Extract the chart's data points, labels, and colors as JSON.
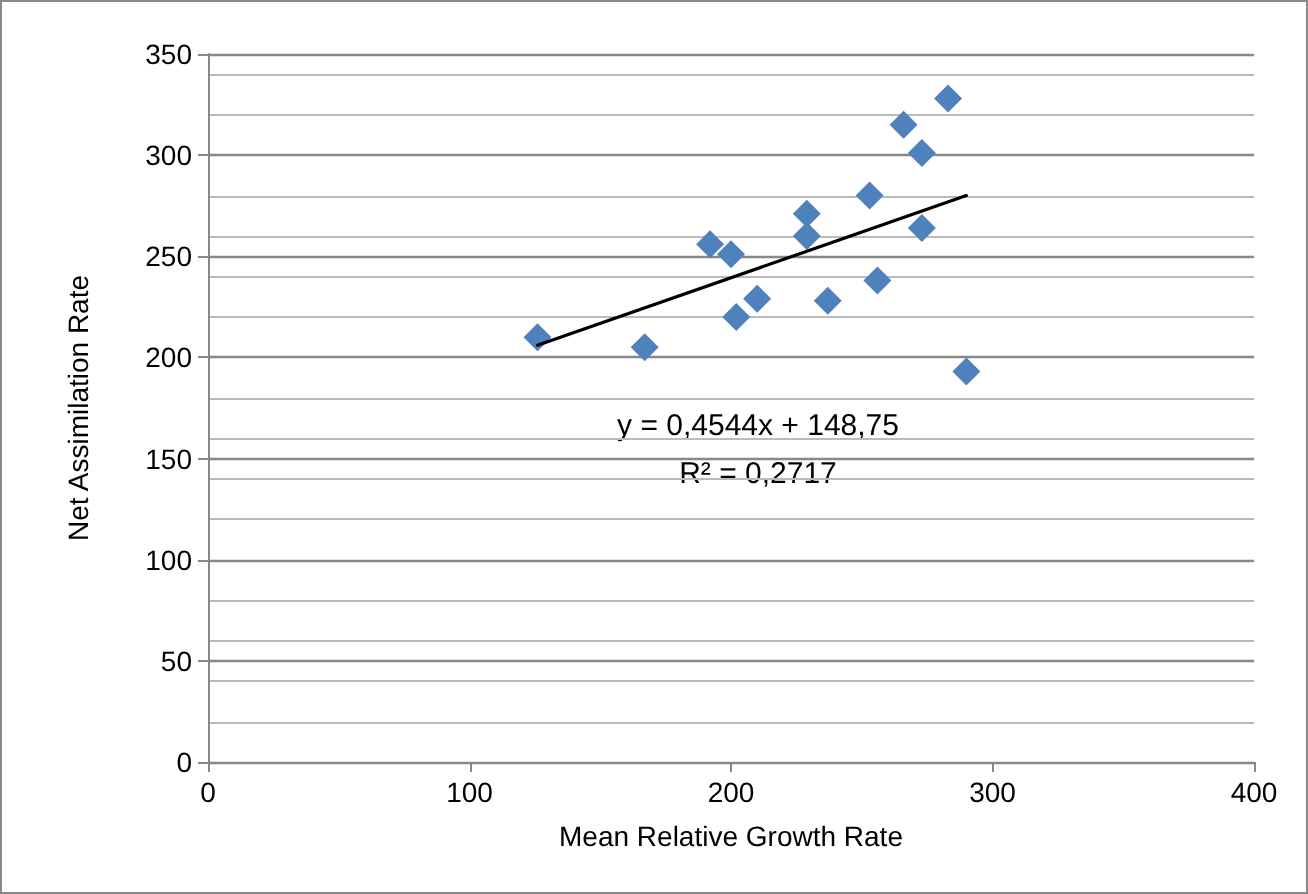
{
  "chart_data": {
    "type": "scatter",
    "xlabel": "Mean Relative Growth Rate",
    "ylabel": "Net Assimilation Rate",
    "xlim": [
      0,
      400
    ],
    "xticks": [
      0,
      100,
      200,
      300,
      400
    ],
    "ylim": [
      0,
      350
    ],
    "yticks": [
      0,
      50,
      100,
      150,
      200,
      250,
      300,
      350
    ],
    "grid": "y",
    "marker": "diamond",
    "series": [
      {
        "color": "#4f81bd",
        "x": [
          126,
          167,
          192,
          200,
          202,
          210,
          229,
          229,
          237,
          253,
          256,
          266,
          273,
          273,
          283,
          290
        ],
        "values": [
          210,
          205,
          256,
          251,
          220,
          229,
          271,
          260,
          228,
          280,
          238,
          315,
          301,
          264,
          328,
          193
        ]
      },
      {
        "type": "line",
        "color": "#000000",
        "marker": "none",
        "line_style": "solid",
        "x": [
          126,
          290
        ],
        "values": [
          206,
          280
        ]
      }
    ],
    "annotations": [
      "y = 0,4544x + 148,75",
      "R² = 0,2717"
    ]
  }
}
